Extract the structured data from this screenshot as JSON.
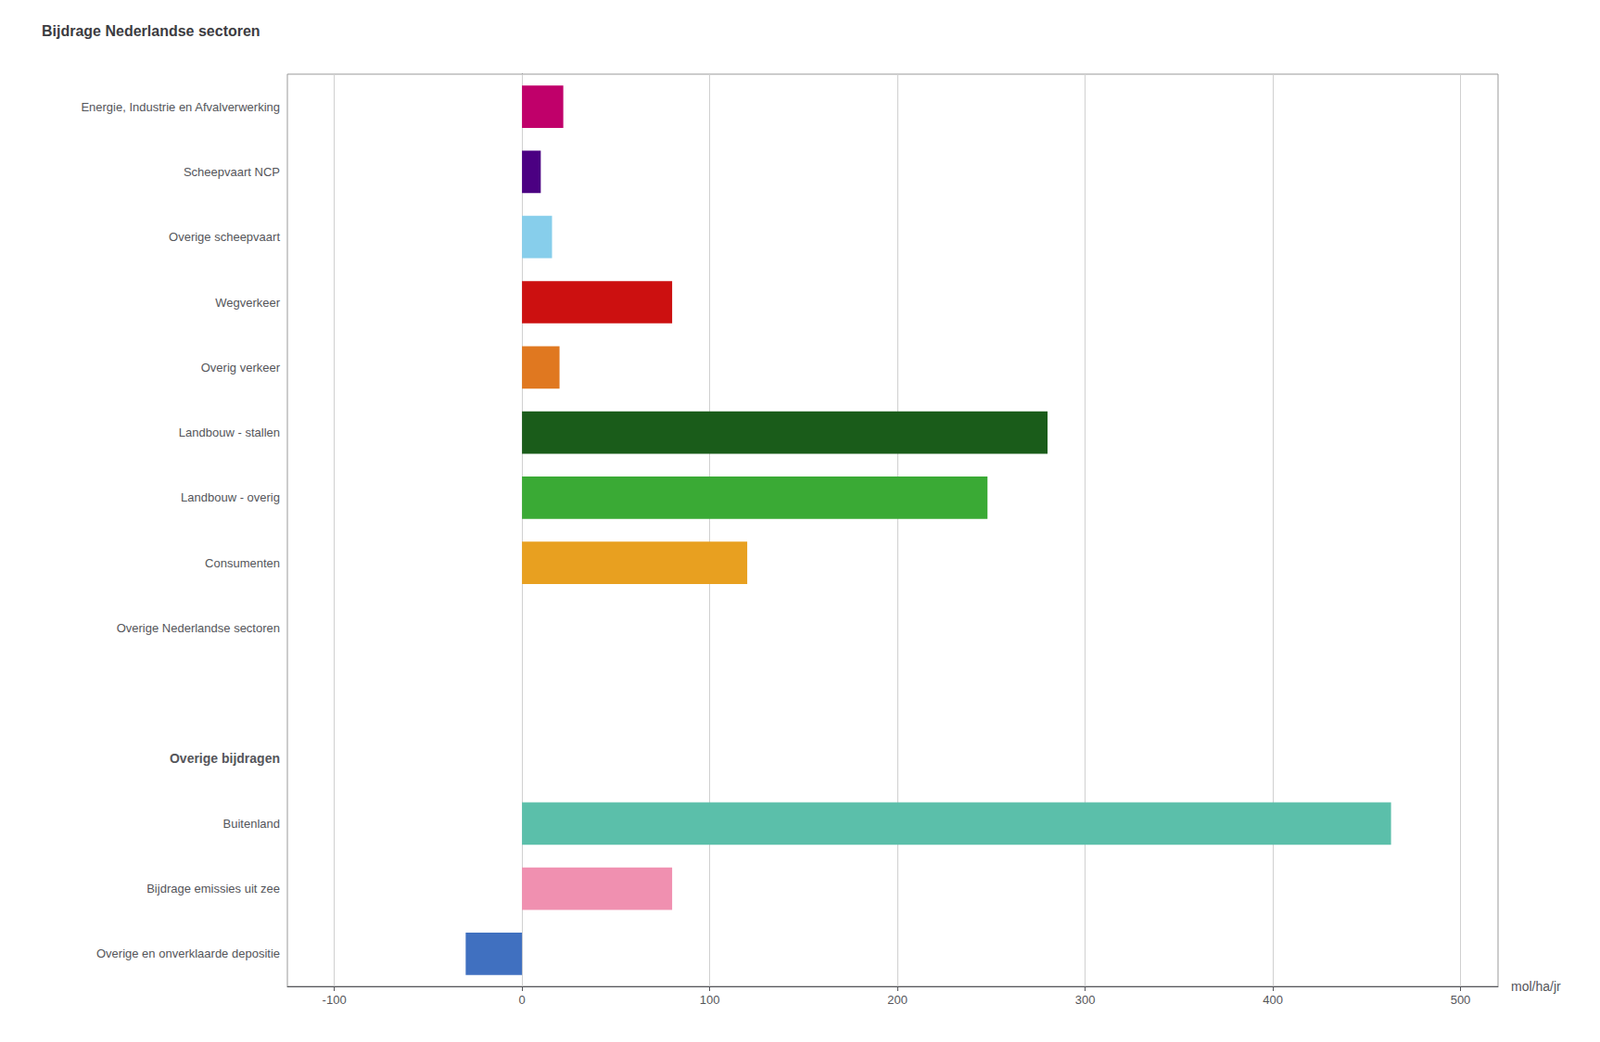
{
  "chart_data": {
    "type": "bar",
    "orientation": "horizontal",
    "title": "Bijdrage Nederlandse sectoren",
    "xlabel": "mol/ha/jr",
    "categories": [
      "Energie, Industrie en Afvalverwerking",
      "Scheepvaart NCP",
      "Overige scheepvaart",
      "Wegverkeer",
      "Overig verkeer",
      "Landbouw - stallen",
      "Landbouw - overig",
      "Consumenten",
      "Overige Nederlandse sectoren",
      null,
      "Overige bijdragen",
      "Buitenland",
      "Bijdrage emissies uit zee",
      "Overige en onverklaarde depositie"
    ],
    "values": [
      22,
      10,
      16,
      80,
      20,
      280,
      248,
      120,
      0,
      null,
      null,
      463,
      80,
      -30
    ],
    "colors": [
      "#c0006a",
      "#4b0082",
      "#87ceeb",
      "#cc1010",
      "#e07820",
      "#1a5c1a",
      "#3aaa35",
      "#e8a020",
      "#ffffff",
      null,
      null,
      "#5bbfaa",
      "#f090b0",
      "#4070c0"
    ],
    "xlim": [
      -125,
      520
    ],
    "xticks": [
      -100,
      0,
      100,
      200,
      300,
      400,
      500
    ],
    "grid": true
  }
}
